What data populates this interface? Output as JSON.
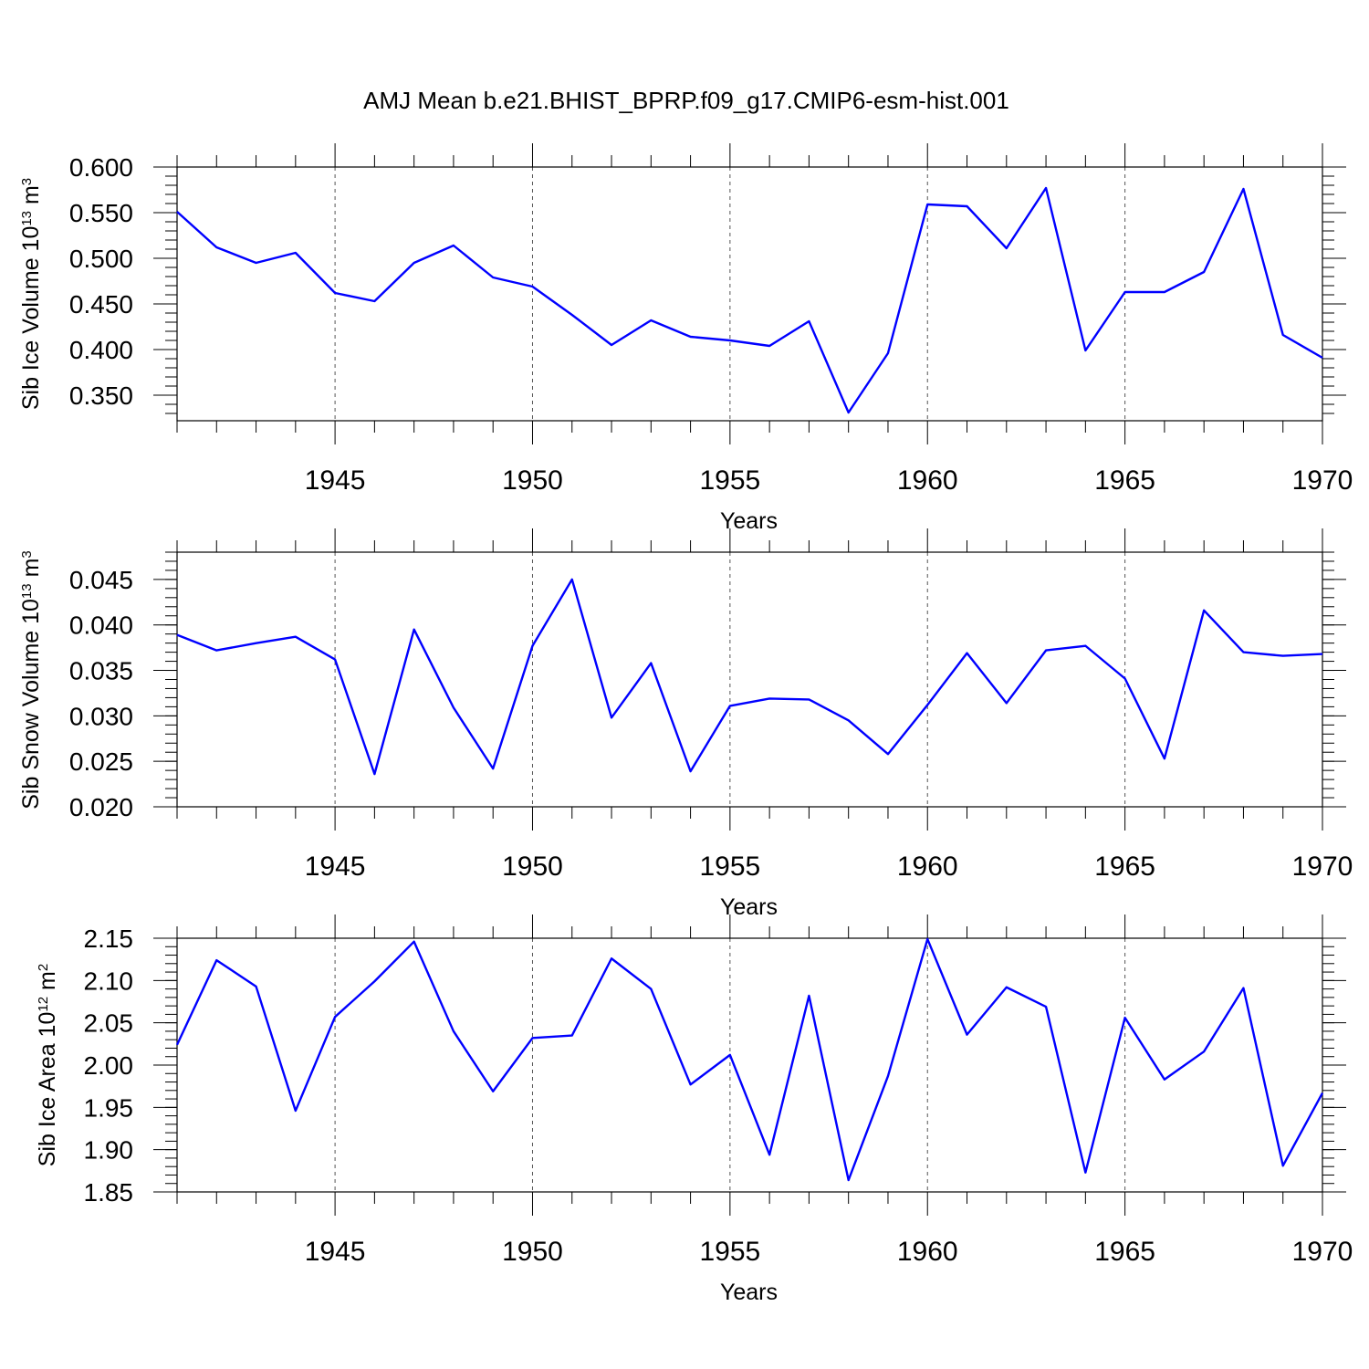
{
  "title": "AMJ Mean b.e21.BHIST_BPRP.f09_g17.CMIP6-esm-hist.001",
  "chart_data": [
    {
      "type": "line",
      "ylabel": "Sib Ice Volume 10",
      "ylabel_sup": "13",
      "ylabel_unit": "m",
      "ylabel_unit_sup": "3",
      "xlabel": "Years",
      "xlim": [
        1941,
        1970
      ],
      "ylim": [
        0.322,
        0.6
      ],
      "xticks": [
        "1945",
        "1950",
        "1955",
        "1960",
        "1965",
        "1970"
      ],
      "yticks": [
        "0.600",
        "0.550",
        "0.500",
        "0.450",
        "0.400",
        "0.350"
      ],
      "x": [
        1941,
        1942,
        1943,
        1944,
        1945,
        1946,
        1947,
        1948,
        1949,
        1950,
        1951,
        1952,
        1953,
        1954,
        1955,
        1956,
        1957,
        1958,
        1959,
        1960,
        1961,
        1962,
        1963,
        1964,
        1965,
        1966,
        1967,
        1968,
        1969,
        1970
      ],
      "series": [
        {
          "values": [
            0.551,
            0.512,
            0.495,
            0.506,
            0.462,
            0.453,
            0.495,
            0.514,
            0.479,
            0.469,
            0.438,
            0.405,
            0.432,
            0.414,
            0.41,
            0.404,
            0.431,
            0.331,
            0.396,
            0.559,
            0.557,
            0.511,
            0.577,
            0.399,
            0.463,
            0.463,
            0.485,
            0.576,
            0.416,
            0.391
          ]
        }
      ]
    },
    {
      "type": "line",
      "ylabel": "Sib Snow Volume 10",
      "ylabel_sup": "13",
      "ylabel_unit": "m",
      "ylabel_unit_sup": "3",
      "xlabel": "Years",
      "xlim": [
        1941,
        1970
      ],
      "ylim": [
        0.02,
        0.048
      ],
      "xticks": [
        "1945",
        "1950",
        "1955",
        "1960",
        "1965",
        "1970"
      ],
      "yticks": [
        "0.045",
        "0.040",
        "0.035",
        "0.030",
        "0.025",
        "0.020"
      ],
      "x": [
        1941,
        1942,
        1943,
        1944,
        1945,
        1946,
        1947,
        1948,
        1949,
        1950,
        1951,
        1952,
        1953,
        1954,
        1955,
        1956,
        1957,
        1958,
        1959,
        1960,
        1961,
        1962,
        1963,
        1964,
        1965,
        1966,
        1967,
        1968,
        1969,
        1970
      ],
      "series": [
        {
          "values": [
            0.0389,
            0.0372,
            0.038,
            0.0387,
            0.0362,
            0.0236,
            0.0395,
            0.0309,
            0.0242,
            0.0377,
            0.045,
            0.0298,
            0.0358,
            0.0239,
            0.0311,
            0.0319,
            0.0318,
            0.0295,
            0.0258,
            0.0312,
            0.0369,
            0.0314,
            0.0372,
            0.0377,
            0.0341,
            0.0253,
            0.0416,
            0.037,
            0.0366,
            0.0368
          ]
        }
      ]
    },
    {
      "type": "line",
      "ylabel": "Sib Ice Area 10",
      "ylabel_sup": "12",
      "ylabel_unit": "m",
      "ylabel_unit_sup": "2",
      "xlabel": "Years",
      "xlim": [
        1941,
        1970
      ],
      "ylim": [
        1.85,
        2.15
      ],
      "xticks": [
        "1945",
        "1950",
        "1955",
        "1960",
        "1965",
        "1970"
      ],
      "yticks": [
        "2.15",
        "2.10",
        "2.05",
        "2.00",
        "1.95",
        "1.90",
        "1.85"
      ],
      "x": [
        1941,
        1942,
        1943,
        1944,
        1945,
        1946,
        1947,
        1948,
        1949,
        1950,
        1951,
        1952,
        1953,
        1954,
        1955,
        1956,
        1957,
        1958,
        1959,
        1960,
        1961,
        1962,
        1963,
        1964,
        1965,
        1966,
        1967,
        1968,
        1969,
        1970
      ],
      "series": [
        {
          "values": [
            2.024,
            2.124,
            2.093,
            1.946,
            2.057,
            2.099,
            2.146,
            2.04,
            1.969,
            2.032,
            2.035,
            2.126,
            2.09,
            1.977,
            2.012,
            1.894,
            2.082,
            1.864,
            1.987,
            2.149,
            2.036,
            2.092,
            2.069,
            1.873,
            2.056,
            1.983,
            2.016,
            2.091,
            1.881,
            1.967
          ]
        }
      ]
    }
  ]
}
